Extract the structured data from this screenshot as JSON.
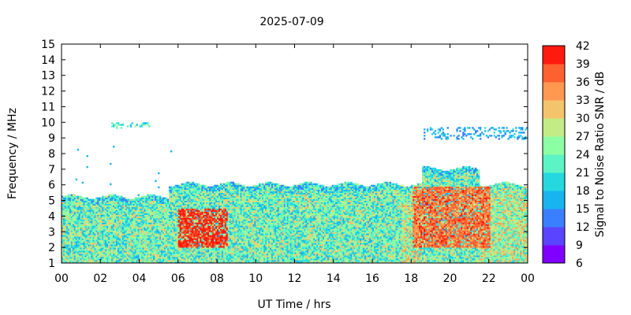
{
  "chart_data": {
    "type": "heatmap",
    "title": "2025-07-09",
    "xlabel": "UT Time / hrs",
    "ylabel": "Frequency / MHz",
    "colorbar_label": "Signal to Noise Ratio SNR / dB",
    "xlim": [
      0,
      24
    ],
    "ylim": [
      1,
      15
    ],
    "x_ticks": [
      "00",
      "02",
      "04",
      "06",
      "08",
      "10",
      "12",
      "14",
      "16",
      "18",
      "20",
      "22",
      "00"
    ],
    "y_ticks": [
      "1",
      "2",
      "3",
      "4",
      "5",
      "6",
      "7",
      "8",
      "9",
      "10",
      "11",
      "12",
      "13",
      "14",
      "15"
    ],
    "colorbar_ticks": [
      "6",
      "9",
      "12",
      "15",
      "18",
      "21",
      "24",
      "27",
      "30",
      "33",
      "36",
      "39",
      "42"
    ],
    "colorbar_range": [
      6,
      42
    ],
    "colorbar_colors": [
      "#8000ff",
      "#5a44ff",
      "#3a7fff",
      "#18b4f0",
      "#25d8e0",
      "#5cf4c4",
      "#8cffa4",
      "#c4ec86",
      "#f4c46c",
      "#ff9850",
      "#ff6030",
      "#ff1a10"
    ],
    "grid": false,
    "regions": [
      {
        "description": "band",
        "x": [
          0,
          24
        ],
        "y_low": 1,
        "y_high": 5.2,
        "snr": 24
      },
      {
        "description": "band",
        "x": [
          5.5,
          17.5
        ],
        "y_high": 6.0,
        "snr": 24
      },
      {
        "description": "band",
        "x": [
          17.5,
          24
        ],
        "y_high": 6.0,
        "snr": 27
      },
      {
        "description": "band",
        "x": [
          18.5,
          21.5
        ],
        "y_high": 7.0,
        "snr": 24
      },
      {
        "description": "peak",
        "x": [
          6,
          8.5
        ],
        "y": [
          2,
          4.5
        ],
        "snr": 40
      },
      {
        "description": "peak",
        "x": [
          18,
          22
        ],
        "y": [
          2,
          5.8
        ],
        "snr": 37
      },
      {
        "description": "scatter",
        "x": [
          2.5,
          4.5
        ],
        "y": [
          9.5,
          9.9
        ],
        "snr": 21
      },
      {
        "description": "scatter",
        "x": [
          18.5,
          24
        ],
        "y": [
          8.8,
          9.6
        ],
        "snr": 16
      }
    ]
  }
}
